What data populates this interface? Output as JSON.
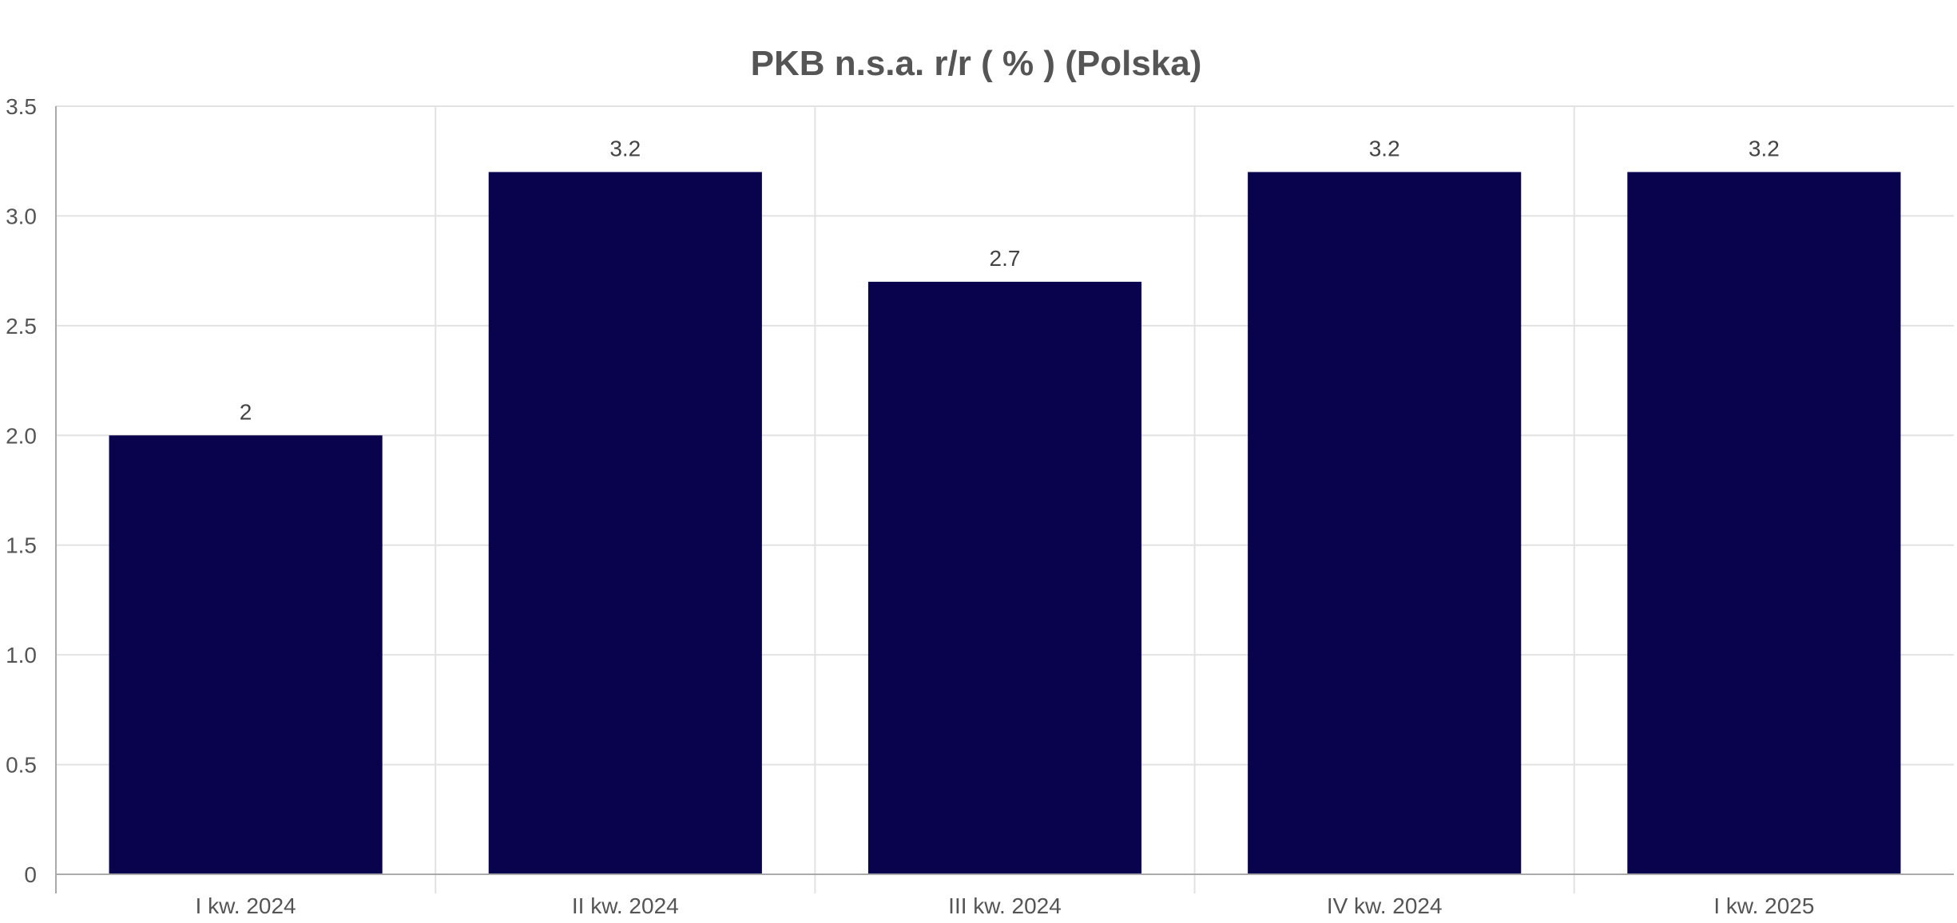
{
  "chart_data": {
    "type": "bar",
    "title": "PKB n.s.a. r/r ( % ) (Polska)",
    "xlabel": "",
    "ylabel": "",
    "categories": [
      "I kw. 2024",
      "II kw. 2024",
      "III kw. 2024",
      "IV kw. 2024",
      "I kw. 2025"
    ],
    "values": [
      2,
      3.2,
      2.7,
      3.2,
      3.2
    ],
    "data_labels": [
      "2",
      "3.2",
      "2.7",
      "3.2",
      "3.2"
    ],
    "ylim": [
      0,
      3.5
    ],
    "y_ticks": [
      0,
      0.5,
      1.0,
      1.5,
      2.0,
      2.5,
      3.0,
      3.5
    ],
    "y_tick_labels": [
      "0",
      "0.5",
      "1.0",
      "1.5",
      "2.0",
      "2.5",
      "3.0",
      "3.5"
    ],
    "grid": true,
    "legend": "none",
    "bar_color": "#08034c"
  }
}
